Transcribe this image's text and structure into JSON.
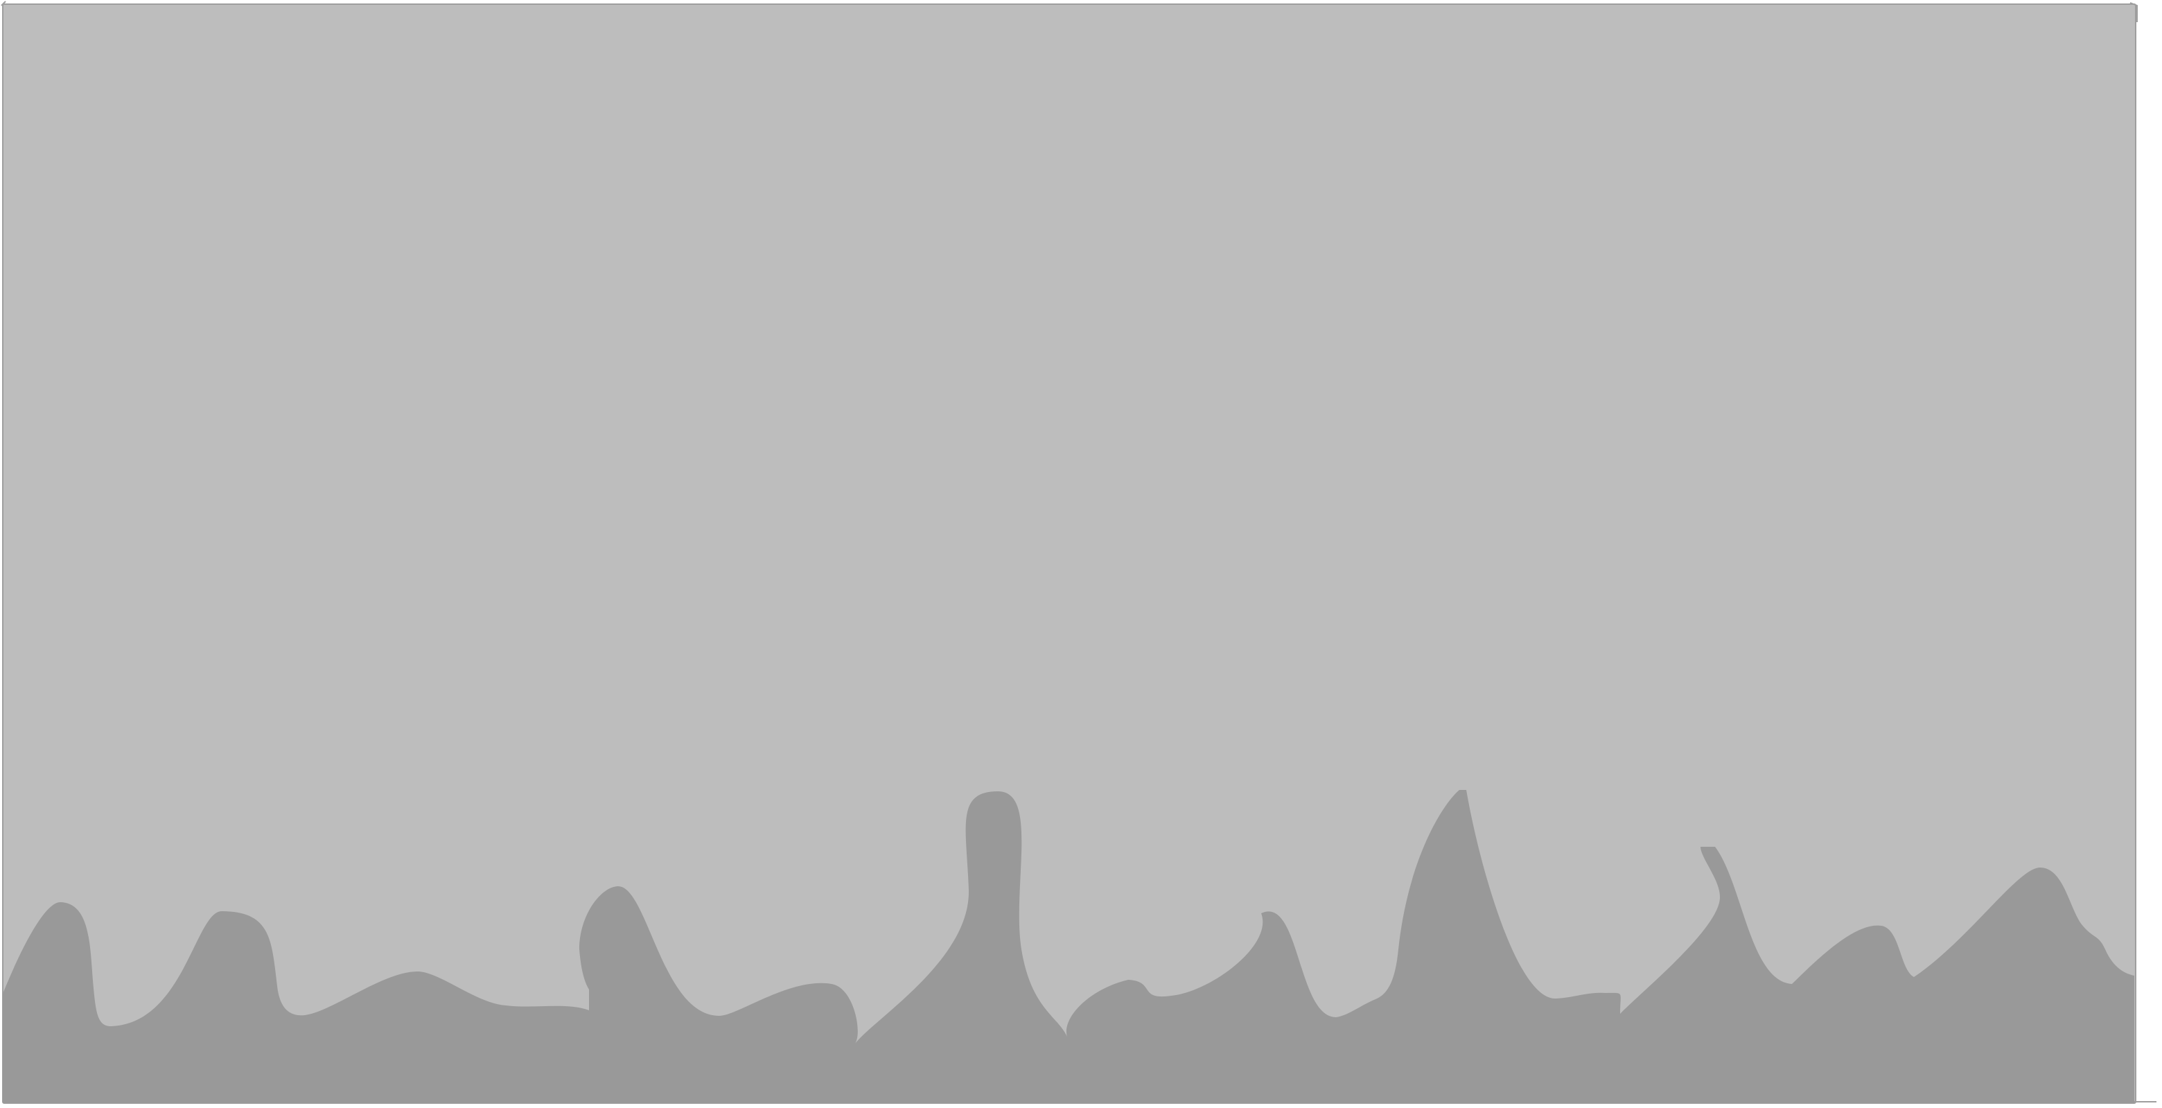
{
  "colors": {
    "page_background": "#ffffff",
    "panel_fill": "#bdbdbd",
    "panel_border": "#9e9e9e",
    "silhouette_fill": "#999999"
  },
  "shapes": {
    "panel": "rounded-gray-rectangle",
    "silhouette": "wavy-gray-hills"
  }
}
